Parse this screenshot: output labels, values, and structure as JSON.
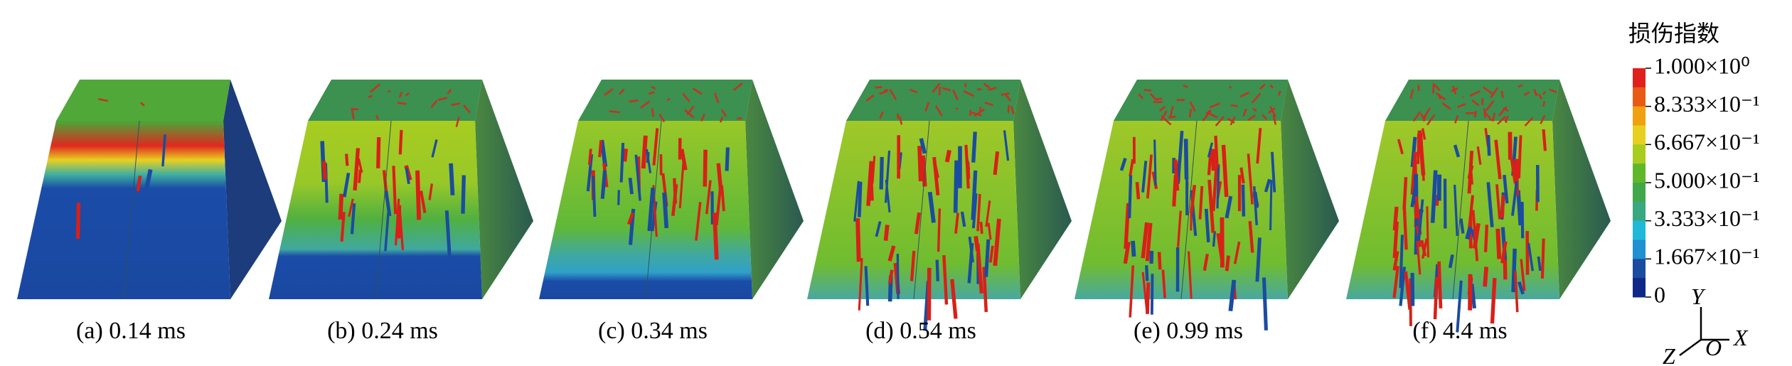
{
  "panels": [
    {
      "caption": "(a) 0.14 ms"
    },
    {
      "caption": "(b) 0.24 ms"
    },
    {
      "caption": "(c) 0.34 ms"
    },
    {
      "caption": "(d) 0.54 ms"
    },
    {
      "caption": "(e) 0.99 ms"
    },
    {
      "caption": "(f) 4.4 ms"
    }
  ],
  "legend": {
    "title": "损伤指数",
    "labels": [
      "1.000×10⁰",
      "8.333×10⁻¹",
      "6.667×10⁻¹",
      "5.000×10⁻¹",
      "3.333×10⁻¹",
      "1.667×10⁻¹",
      "0"
    ],
    "colors": [
      "#e0201c",
      "#e85a14",
      "#f0a010",
      "#e8d020",
      "#a8cc20",
      "#60b828",
      "#40a848",
      "#38a880",
      "#20b8d8",
      "#2090d0",
      "#1a4ca0",
      "#102888"
    ]
  },
  "axes": {
    "y": "Y",
    "x": "X",
    "z": "Z",
    "origin": "O"
  }
}
